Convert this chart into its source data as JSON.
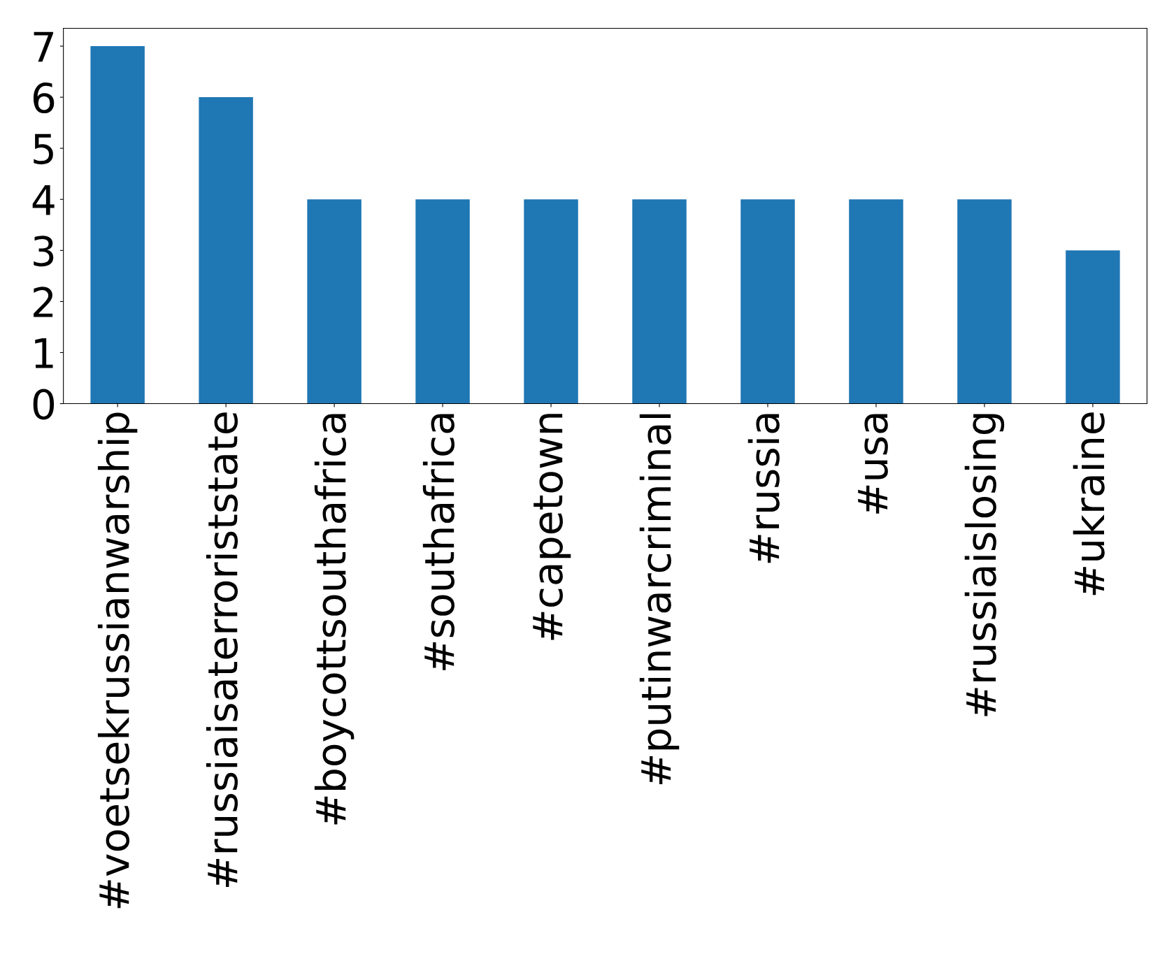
{
  "chart_data": {
    "type": "bar",
    "categories": [
      "#voetsekrussianwarship",
      "#russiaisaterroriststate",
      "#boycottsouthafrica",
      "#southafrica",
      "#capetown",
      "#putinwarcriminal",
      "#russia",
      "#usa",
      "#russiaislosing",
      "#ukraine"
    ],
    "values": [
      7,
      6,
      4,
      4,
      4,
      4,
      4,
      4,
      4,
      3
    ],
    "color": "#1f77b4",
    "ylim": [
      0,
      7.35
    ],
    "yticks": [
      0,
      1,
      2,
      3,
      4,
      5,
      6,
      7
    ],
    "grid": false,
    "legend": false
  }
}
